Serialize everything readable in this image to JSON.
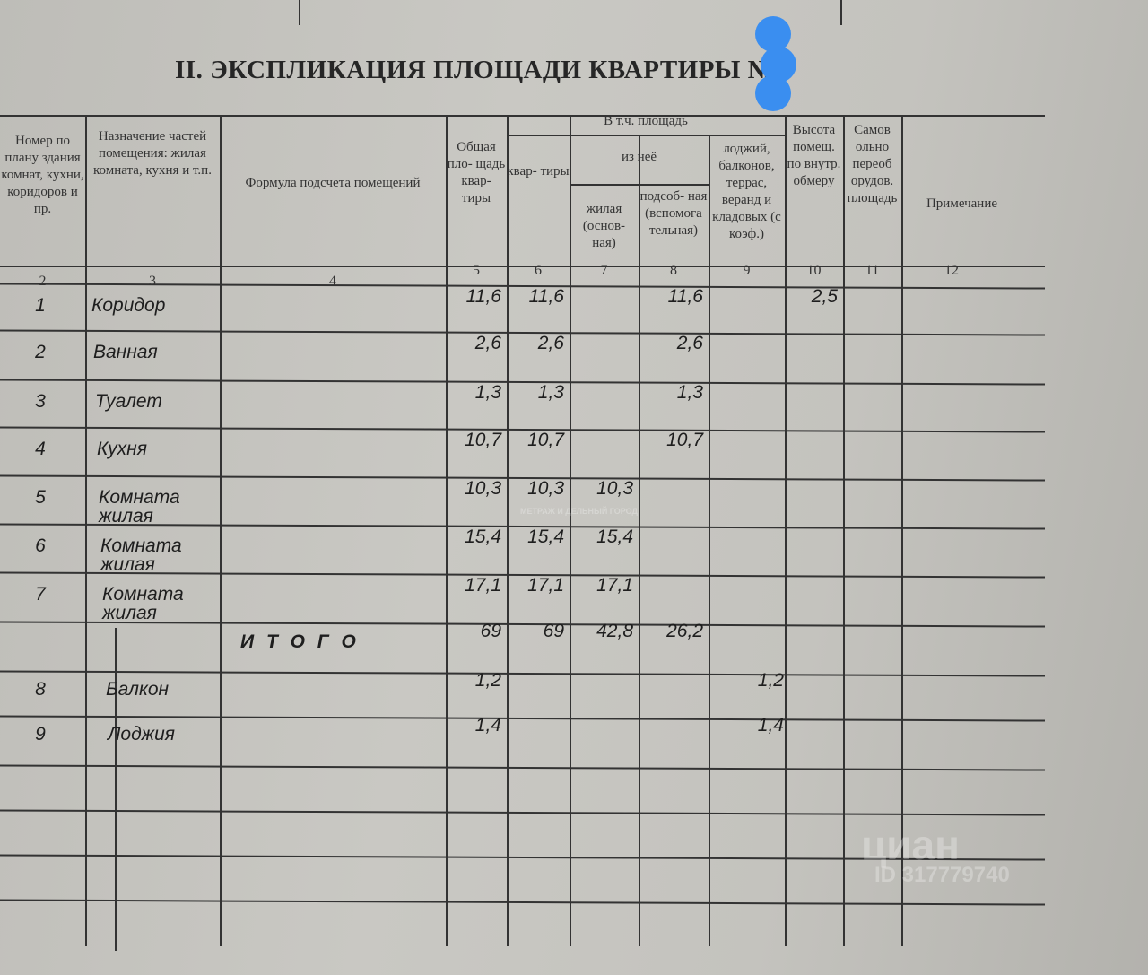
{
  "title": "II. ЭКСПЛИКАЦИЯ ПЛОЩАДИ КВАРТИРЫ №",
  "headers": {
    "col2": "Номер по плану здания комнат, кухни, коридоров и пр.",
    "col3": "Назначение частей помещения: жилая комната, кухня и т.п.",
    "col4": "Формула подсчета помещений",
    "col5": "Общая пло- щадь квар- тиры",
    "group": "В т.ч. площадь",
    "col6": "квар- тиры",
    "subgroup": "из неё",
    "col7": "жилая (основ- ная)",
    "col8": "подсоб- ная (вспомога тельная)",
    "col9": "лоджий, балконов, террас, веранд и кладовых (с коэф.)",
    "col10": "Высота помещ. по внутр. обмеру",
    "col11": "Самов ольно переоб орудов. площадь",
    "col12": "Примечание"
  },
  "column_numbers": [
    "2",
    "3",
    "4",
    "5",
    "6",
    "7",
    "8",
    "9",
    "10",
    "11",
    "12"
  ],
  "rows": [
    {
      "no": "1",
      "name": "Коридор",
      "total": "11,6",
      "flat": "11,6",
      "living": "",
      "aux": "11,6",
      "balcony": "",
      "height": "2,5"
    },
    {
      "no": "2",
      "name": "Ванная",
      "total": "2,6",
      "flat": "2,6",
      "living": "",
      "aux": "2,6",
      "balcony": "",
      "height": ""
    },
    {
      "no": "3",
      "name": "Туалет",
      "total": "1,3",
      "flat": "1,3",
      "living": "",
      "aux": "1,3",
      "balcony": "",
      "height": ""
    },
    {
      "no": "4",
      "name": "Кухня",
      "total": "10,7",
      "flat": "10,7",
      "living": "",
      "aux": "10,7",
      "balcony": "",
      "height": ""
    },
    {
      "no": "5",
      "name": "Комната жилая",
      "total": "10,3",
      "flat": "10,3",
      "living": "10,3",
      "aux": "",
      "balcony": "",
      "height": ""
    },
    {
      "no": "6",
      "name": "Комната жилая",
      "total": "15,4",
      "flat": "15,4",
      "living": "15,4",
      "aux": "",
      "balcony": "",
      "height": ""
    },
    {
      "no": "7",
      "name": "Комната жилая",
      "total": "17,1",
      "flat": "17,1",
      "living": "17,1",
      "aux": "",
      "balcony": "",
      "height": ""
    },
    {
      "no": "",
      "name": "",
      "formula": "И Т О Г О",
      "total": "69",
      "flat": "69",
      "living": "42,8",
      "aux": "26,2",
      "balcony": "",
      "height": ""
    },
    {
      "no": "8",
      "name": "Балкон",
      "total": "1,2",
      "flat": "",
      "living": "",
      "aux": "",
      "balcony": "1,2",
      "height": ""
    },
    {
      "no": "9",
      "name": "Лоджия",
      "total": "1,4",
      "flat": "",
      "living": "",
      "aux": "",
      "balcony": "1,4",
      "height": ""
    }
  ],
  "watermarks": {
    "center": "МЕТРАЖ И ДЕЛЬНЫЙ ГОРОД",
    "brand": "циан",
    "id": "ID 317779740"
  },
  "colors": {
    "privacy_blob": "#3a8ef0",
    "paper": "#c4c3be",
    "ink": "#2a2a2a"
  }
}
